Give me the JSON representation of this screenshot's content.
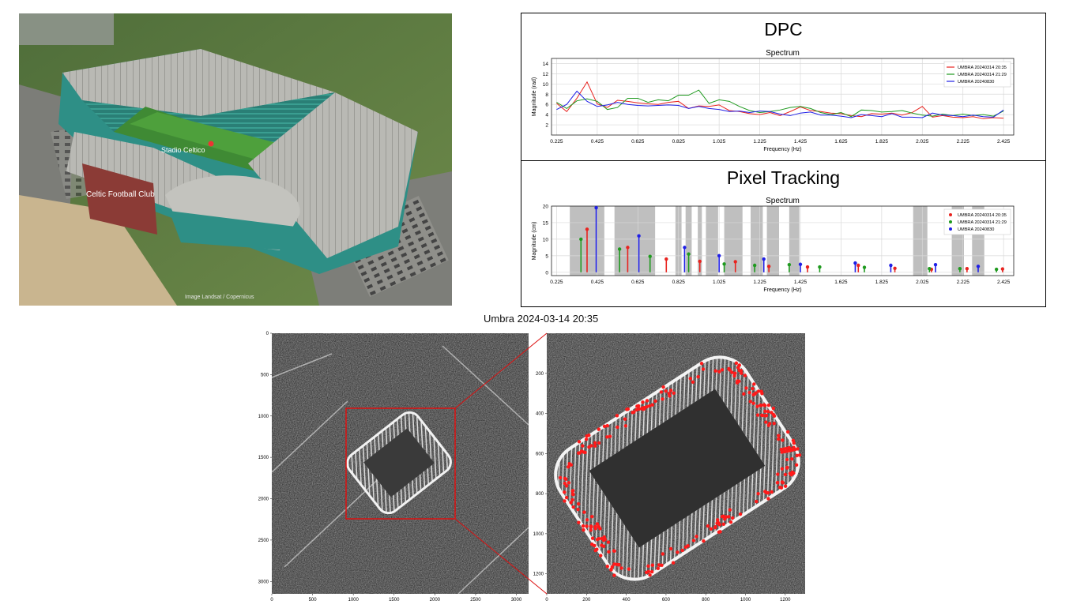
{
  "photo": {
    "labels": [
      "Stadio Celtico",
      "Celtic Football Club",
      "Image Landsat / Copernicus"
    ]
  },
  "dpc_panel": {
    "heading": "DPC"
  },
  "pt_panel": {
    "heading": "Pixel Tracking"
  },
  "sar": {
    "title": "Umbra 2024-03-14 20:35",
    "overview": {
      "xticks": [
        "0",
        "500",
        "1000",
        "1500",
        "2000",
        "2500",
        "3000"
      ],
      "yticks": [
        "0",
        "500",
        "1000",
        "1500",
        "2000",
        "2500",
        "3000"
      ]
    },
    "zoom": {
      "xticks": [
        "0",
        "200",
        "400",
        "600",
        "800",
        "1000",
        "1200"
      ],
      "yticks": [
        "200",
        "400",
        "600",
        "800",
        "1000",
        "1200"
      ]
    }
  },
  "colors": {
    "red": "#e8231f",
    "green": "#1f9a1f",
    "blue": "#1f1fe6",
    "shade": "#bfbfbf"
  },
  "chart_data": [
    {
      "type": "line",
      "title": "Spectrum",
      "xlabel": "Frequency (Hz)",
      "ylabel": "Magnitude (rad)",
      "xlim": [
        0.2,
        2.475
      ],
      "ylim": [
        0,
        15
      ],
      "xticks": [
        "0.225",
        "0.425",
        "0.625",
        "0.825",
        "1.025",
        "1.225",
        "1.425",
        "1.625",
        "1.825",
        "2.025",
        "2.225",
        "2.425"
      ],
      "yticks": [
        "2",
        "4",
        "6",
        "8",
        "10",
        "12",
        "14"
      ],
      "grid": true,
      "legend": "top-right",
      "x": [
        0.225,
        0.275,
        0.325,
        0.375,
        0.425,
        0.475,
        0.525,
        0.575,
        0.625,
        0.675,
        0.725,
        0.775,
        0.825,
        0.875,
        0.925,
        0.975,
        1.025,
        1.075,
        1.125,
        1.175,
        1.225,
        1.275,
        1.325,
        1.375,
        1.425,
        1.475,
        1.525,
        1.575,
        1.625,
        1.675,
        1.725,
        1.775,
        1.825,
        1.875,
        1.925,
        1.975,
        2.025,
        2.075,
        2.125,
        2.175,
        2.225,
        2.275,
        2.325,
        2.375,
        2.425
      ],
      "series": [
        {
          "name": "UMBRA 20240314 20:35",
          "color": "red",
          "values": [
            6.2,
            4.6,
            7.2,
            10.4,
            6.1,
            5.4,
            6.8,
            6.6,
            6.3,
            6.1,
            6.0,
            6.4,
            6.6,
            5.2,
            5.7,
            5.6,
            5.9,
            4.8,
            4.6,
            4.2,
            4.0,
            4.4,
            3.8,
            4.6,
            5.5,
            4.8,
            4.6,
            4.3,
            4.2,
            3.8,
            3.6,
            4.2,
            4.1,
            4.3,
            3.9,
            4.4,
            5.6,
            3.5,
            3.8,
            3.5,
            3.4,
            3.6,
            3.2,
            3.4,
            3.3
          ]
        },
        {
          "name": "UMBRA 20240314 21:29",
          "color": "green",
          "values": [
            6.4,
            5.2,
            6.7,
            7.1,
            6.6,
            5.0,
            5.4,
            7.2,
            7.2,
            6.4,
            6.9,
            6.7,
            7.8,
            7.8,
            8.8,
            6.2,
            6.9,
            6.6,
            5.6,
            4.8,
            4.4,
            4.6,
            4.9,
            5.4,
            5.6,
            5.2,
            4.4,
            4.0,
            4.4,
            3.6,
            4.9,
            4.8,
            4.5,
            4.6,
            4.8,
            4.3,
            3.9,
            3.7,
            4.1,
            3.8,
            4.1,
            3.8,
            4.0,
            3.7,
            4.7
          ]
        },
        {
          "name": "UMBRA 20240830",
          "color": "blue",
          "values": [
            5.0,
            6.0,
            8.6,
            6.6,
            5.6,
            5.9,
            6.4,
            6.0,
            5.8,
            5.7,
            5.8,
            5.9,
            5.8,
            5.2,
            5.6,
            5.2,
            5.0,
            4.6,
            4.7,
            4.4,
            4.7,
            4.6,
            4.1,
            3.8,
            4.3,
            4.5,
            3.9,
            3.9,
            3.7,
            3.4,
            4.0,
            3.8,
            3.6,
            4.2,
            3.5,
            3.5,
            3.4,
            4.3,
            3.9,
            3.8,
            3.6,
            3.9,
            3.6,
            3.5,
            4.9
          ]
        }
      ]
    },
    {
      "type": "scatter",
      "title": "Spectrum",
      "xlabel": "Frequency (Hz)",
      "ylabel": "Magnitude (cm)",
      "xlim": [
        0.2,
        2.475
      ],
      "ylim": [
        -1,
        20
      ],
      "xticks": [
        "0.225",
        "0.425",
        "0.625",
        "0.825",
        "1.025",
        "1.225",
        "1.425",
        "1.625",
        "1.825",
        "2.025",
        "2.225",
        "2.425"
      ],
      "yticks": [
        "0",
        "5",
        "10",
        "15",
        "20"
      ],
      "grid": true,
      "legend": "top-right",
      "shaded_bands": [
        [
          0.29,
          0.46
        ],
        [
          0.51,
          0.71
        ],
        [
          0.81,
          0.84
        ],
        [
          0.86,
          0.89
        ],
        [
          0.92,
          0.94
        ],
        [
          0.96,
          1.02
        ],
        [
          1.05,
          1.14
        ],
        [
          1.18,
          1.24
        ],
        [
          1.26,
          1.32
        ],
        [
          1.37,
          1.42
        ],
        [
          1.98,
          2.05
        ],
        [
          2.17,
          2.23
        ],
        [
          2.27,
          2.33
        ]
      ],
      "series": [
        {
          "name": "UMBRA 20240314 20:35",
          "color": "red",
          "x": [
            0.375,
            0.575,
            0.765,
            0.93,
            1.105,
            1.27,
            1.46,
            1.71,
            1.89,
            2.07,
            2.245,
            2.42
          ],
          "values": [
            13,
            7.5,
            4,
            3.3,
            3.2,
            1.8,
            1.6,
            2.1,
            1.2,
            0.9,
            1.1,
            1
          ]
        },
        {
          "name": "UMBRA 20240314 21:29",
          "color": "green",
          "x": [
            0.345,
            0.535,
            0.685,
            0.875,
            1.05,
            1.2,
            1.37,
            1.52,
            1.74,
            2.06,
            2.21,
            2.39
          ],
          "values": [
            10,
            7,
            4.8,
            5.5,
            2.5,
            2.1,
            2.3,
            1.6,
            1.5,
            1.1,
            1.1,
            0.9
          ]
        },
        {
          "name": "UMBRA 20240830",
          "color": "blue",
          "x": [
            0.42,
            0.63,
            0.855,
            1.025,
            1.245,
            1.425,
            1.695,
            1.87,
            2.09,
            2.3
          ],
          "values": [
            19.5,
            11,
            7.5,
            5,
            4,
            2.4,
            2.8,
            2.1,
            2.3,
            1.8
          ]
        }
      ]
    }
  ]
}
